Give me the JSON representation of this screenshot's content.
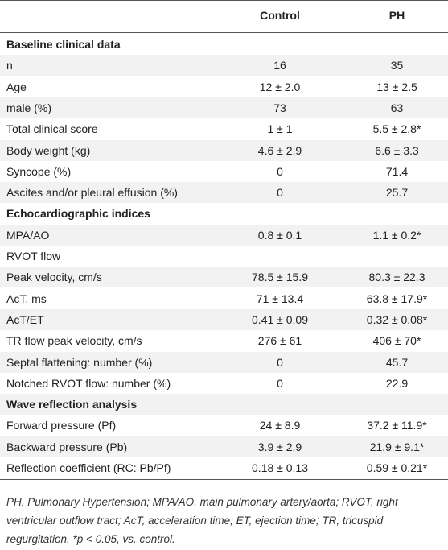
{
  "table": {
    "columns": [
      "Control",
      "PH"
    ],
    "sections": [
      {
        "title": "Baseline clinical data",
        "rows": [
          [
            "n",
            "16",
            "35"
          ],
          [
            "Age",
            "12 ± 2.0",
            "13 ± 2.5"
          ],
          [
            "male (%)",
            "73",
            "63"
          ],
          [
            "Total clinical score",
            "1 ± 1",
            "5.5 ± 2.8*"
          ],
          [
            "Body weight (kg)",
            "4.6 ± 2.9",
            "6.6 ± 3.3"
          ],
          [
            "Syncope (%)",
            "0",
            "71.4"
          ],
          [
            "Ascites and/or pleural effusion (%)",
            "0",
            "25.7"
          ]
        ]
      },
      {
        "title": "Echocardiographic indices",
        "rows": [
          [
            "MPA/AO",
            "0.8 ± 0.1",
            "1.1 ± 0.2*"
          ],
          [
            "RVOT flow"
          ],
          [
            "Peak velocity, cm/s",
            "78.5 ± 15.9",
            "80.3 ± 22.3"
          ],
          [
            "AcT, ms",
            "71 ± 13.4",
            "63.8 ± 17.9*"
          ],
          [
            "AcT/ET",
            "0.41 ± 0.09",
            "0.32 ± 0.08*"
          ],
          [
            "TR flow peak velocity, cm/s",
            "276 ± 61",
            "406 ± 70*"
          ],
          [
            "Septal flattening: number (%)",
            "0",
            "45.7"
          ],
          [
            "Notched RVOT flow: number (%)",
            "0",
            "22.9"
          ]
        ]
      },
      {
        "title": "Wave reflection analysis",
        "rows": [
          [
            "Forward pressure (Pf)",
            "24 ± 8.9",
            "37.2 ± 11.9*"
          ],
          [
            "Backward pressure (Pb)",
            "3.9 ± 2.9",
            "21.9 ± 9.1*"
          ],
          [
            "Reflection coefficient (RC: Pb/Pf)",
            "0.18 ± 0.13",
            "0.59 ± 0.21*"
          ]
        ]
      }
    ],
    "footnote": "PH, Pulmonary Hypertension; MPA/AO, main pulmonary artery/aorta; RVOT, right ventricular outflow tract; AcT, acceleration time; ET, ejection time; TR, tricuspid regurgitation. *p < 0.05, vs. control."
  }
}
